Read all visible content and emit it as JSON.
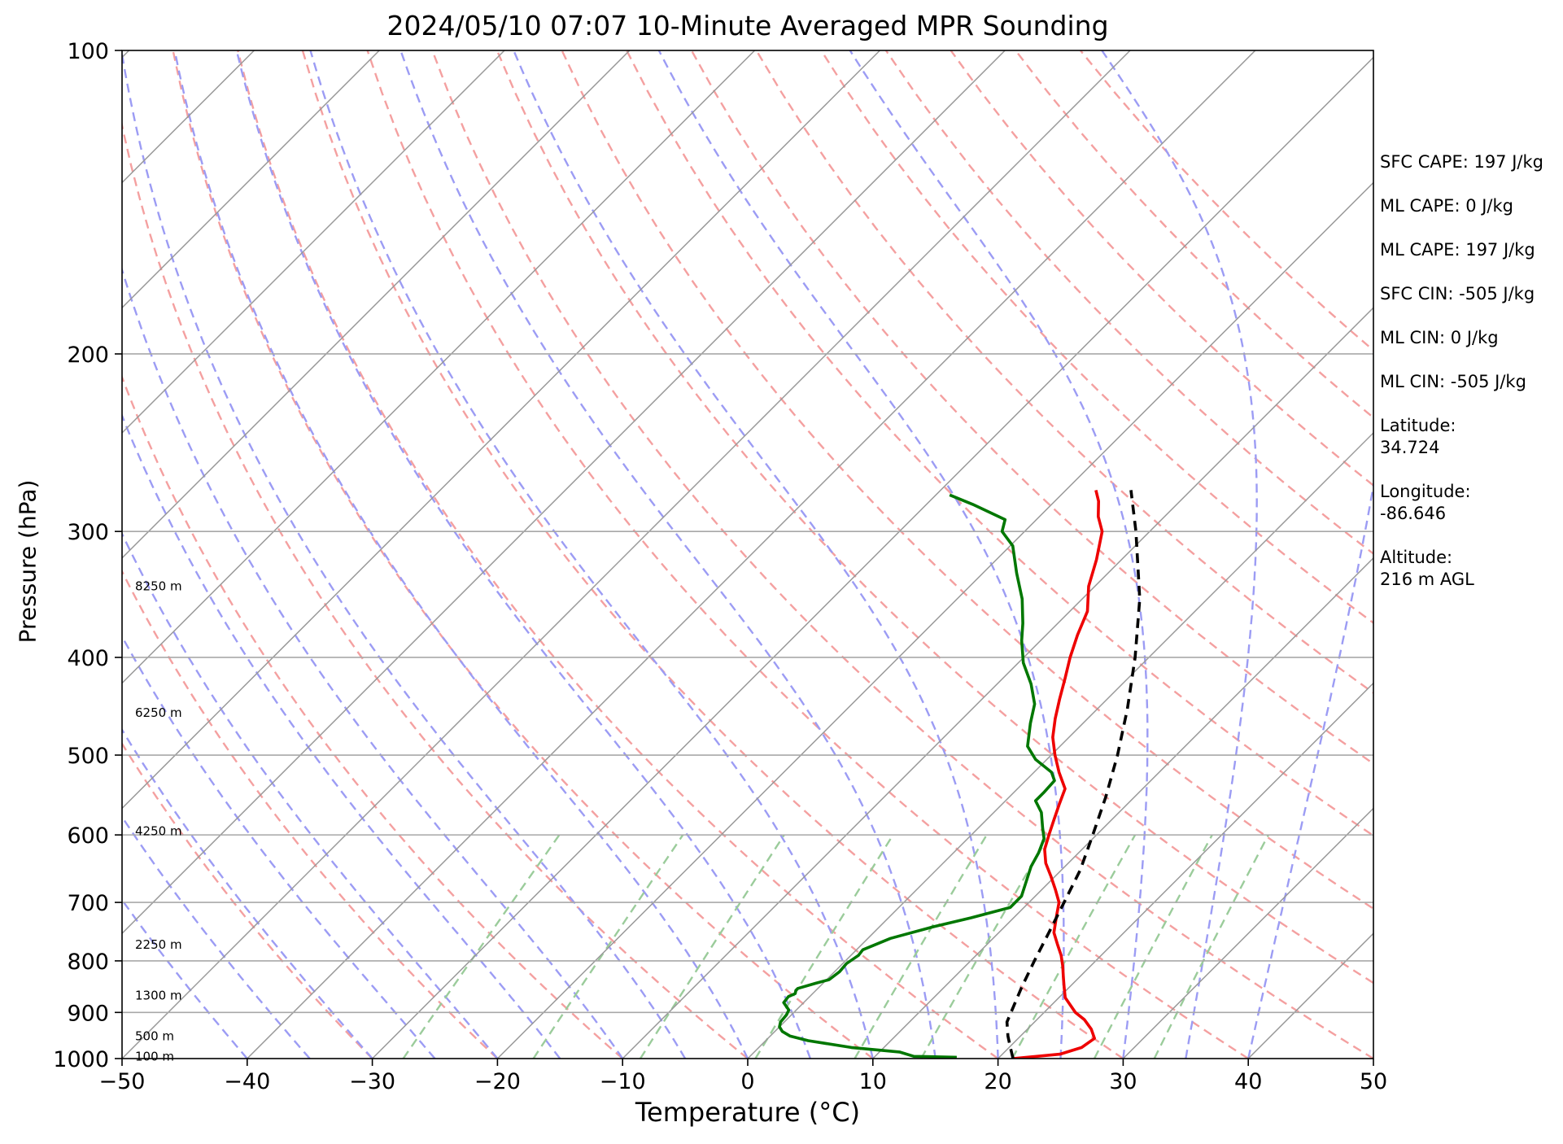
{
  "title": "2024/05/10 07:07 10-Minute Averaged MPR Sounding",
  "stats": [
    {
      "lines": [
        "SFC CAPE: 197 J/kg"
      ]
    },
    {
      "lines": [
        "ML CAPE: 0 J/kg"
      ]
    },
    {
      "lines": [
        "ML CAPE: 197 J/kg"
      ]
    },
    {
      "lines": [
        "SFC CIN: -505 J/kg"
      ]
    },
    {
      "lines": [
        "ML CIN: 0 J/kg"
      ]
    },
    {
      "lines": [
        "ML CIN: -505 J/kg"
      ]
    },
    {
      "lines": [
        "Latitude:",
        "34.724"
      ]
    },
    {
      "lines": [
        "Longitude:",
        "-86.646"
      ]
    },
    {
      "lines": [
        "Altitude:",
        "216 m AGL"
      ]
    }
  ],
  "chart_data": {
    "type": "line",
    "subtype": "skew-T log-P diagram",
    "title": "2024/05/10 07:07 10-Minute Averaged MPR Sounding",
    "xlabel": "Temperature (°C)",
    "ylabel": "Pressure (hPa)",
    "xlim": [
      -50,
      50
    ],
    "ylim": [
      1000,
      100
    ],
    "y_scale": "log",
    "x_ticks": [
      -50,
      -40,
      -30,
      -20,
      -10,
      0,
      10,
      20,
      30,
      40,
      50
    ],
    "x_tick_labels": [
      "−50",
      "−40",
      "−30",
      "−20",
      "−10",
      "0",
      "10",
      "20",
      "30",
      "40",
      "50"
    ],
    "y_ticks": [
      1000,
      900,
      800,
      700,
      600,
      500,
      400,
      300,
      200,
      100
    ],
    "y_tick_labels": [
      "1000",
      "900",
      "800",
      "700",
      "600",
      "500",
      "400",
      "300",
      "200",
      "100"
    ],
    "height_labels": [
      {
        "text": "100 m",
        "pressure": 995
      },
      {
        "text": "500 m",
        "pressure": 950
      },
      {
        "text": "1300 m",
        "pressure": 866
      },
      {
        "text": "2250 m",
        "pressure": 771
      },
      {
        "text": "4250 m",
        "pressure": 595
      },
      {
        "text": "6250 m",
        "pressure": 454
      },
      {
        "text": "8250 m",
        "pressure": 340
      }
    ],
    "colors": {
      "temperature": "#ee0000",
      "dewpoint": "#007700",
      "parcel": "#000000",
      "dry_adiabats": "#f4a0a0",
      "moist_adiabats": "#9c9cf4",
      "mixing_ratio": "#9bcc9b",
      "isotherms": "#999999"
    },
    "series": [
      {
        "key": "temperature",
        "points": [
          [
            1000,
            21.2
          ],
          [
            990,
            24.6
          ],
          [
            975,
            25.8
          ],
          [
            955,
            26.1
          ],
          [
            935,
            25.1
          ],
          [
            915,
            23.8
          ],
          [
            900,
            22.5
          ],
          [
            870,
            20.5
          ],
          [
            850,
            19.6
          ],
          [
            830,
            18.7
          ],
          [
            810,
            17.8
          ],
          [
            790,
            16.8
          ],
          [
            770,
            15.6
          ],
          [
            750,
            14.4
          ],
          [
            720,
            13.2
          ],
          [
            700,
            12.4
          ],
          [
            680,
            11.1
          ],
          [
            660,
            9.7
          ],
          [
            640,
            8.2
          ],
          [
            620,
            7.0
          ],
          [
            600,
            6.2
          ],
          [
            580,
            5.4
          ],
          [
            560,
            4.6
          ],
          [
            540,
            3.8
          ],
          [
            520,
            2.0
          ],
          [
            500,
            0.3
          ],
          [
            480,
            -1.3
          ],
          [
            460,
            -2.6
          ],
          [
            440,
            -3.8
          ],
          [
            420,
            -5.0
          ],
          [
            400,
            -6.3
          ],
          [
            380,
            -7.5
          ],
          [
            360,
            -8.6
          ],
          [
            340,
            -10.5
          ],
          [
            320,
            -12.0
          ],
          [
            300,
            -13.8
          ],
          [
            290,
            -15.3
          ],
          [
            280,
            -16.5
          ],
          [
            273,
            -17.6
          ]
        ]
      },
      {
        "key": "dewpoint",
        "points": [
          [
            997,
            16.6
          ],
          [
            995,
            13.1
          ],
          [
            985,
            11.6
          ],
          [
            975,
            7.4
          ],
          [
            960,
            3.4
          ],
          [
            950,
            1.6
          ],
          [
            940,
            0.6
          ],
          [
            930,
            0.0
          ],
          [
            920,
            -0.3
          ],
          [
            905,
            -0.4
          ],
          [
            895,
            -0.6
          ],
          [
            880,
            -1.6
          ],
          [
            868,
            -1.7
          ],
          [
            862,
            -1.4
          ],
          [
            856,
            -1.6
          ],
          [
            852,
            -1.6
          ],
          [
            842,
            -0.6
          ],
          [
            835,
            0.2
          ],
          [
            820,
            0.4
          ],
          [
            805,
            0.3
          ],
          [
            790,
            0.6
          ],
          [
            780,
            0.5
          ],
          [
            760,
            1.8
          ],
          [
            740,
            4.3
          ],
          [
            725,
            6.6
          ],
          [
            708,
            8.9
          ],
          [
            690,
            8.9
          ],
          [
            670,
            8.2
          ],
          [
            645,
            7.3
          ],
          [
            625,
            6.8
          ],
          [
            605,
            6.1
          ],
          [
            590,
            5.1
          ],
          [
            570,
            3.8
          ],
          [
            555,
            2.4
          ],
          [
            545,
            2.4
          ],
          [
            530,
            2.3
          ],
          [
            520,
            1.4
          ],
          [
            505,
            -0.9
          ],
          [
            490,
            -2.6
          ],
          [
            465,
            -4.2
          ],
          [
            445,
            -5.4
          ],
          [
            425,
            -7.3
          ],
          [
            405,
            -9.6
          ],
          [
            385,
            -11.5
          ],
          [
            370,
            -12.8
          ],
          [
            350,
            -14.8
          ],
          [
            330,
            -17.3
          ],
          [
            310,
            -19.8
          ],
          [
            300,
            -21.8
          ],
          [
            292,
            -22.5
          ],
          [
            282,
            -26.3
          ],
          [
            276,
            -28.9
          ]
        ]
      },
      {
        "key": "parcel",
        "points": [
          [
            1000,
            21.2
          ],
          [
            975,
            20.1
          ],
          [
            950,
            19.0
          ],
          [
            920,
            17.8
          ],
          [
            880,
            16.9
          ],
          [
            850,
            16.2
          ],
          [
            800,
            15.1
          ],
          [
            750,
            14.0
          ],
          [
            700,
            12.8
          ],
          [
            650,
            11.5
          ],
          [
            600,
            9.7
          ],
          [
            550,
            7.7
          ],
          [
            500,
            5.3
          ],
          [
            450,
            2.4
          ],
          [
            400,
            -1.1
          ],
          [
            350,
            -5.4
          ],
          [
            300,
            -11.1
          ],
          [
            273,
            -14.8
          ]
        ]
      }
    ]
  }
}
